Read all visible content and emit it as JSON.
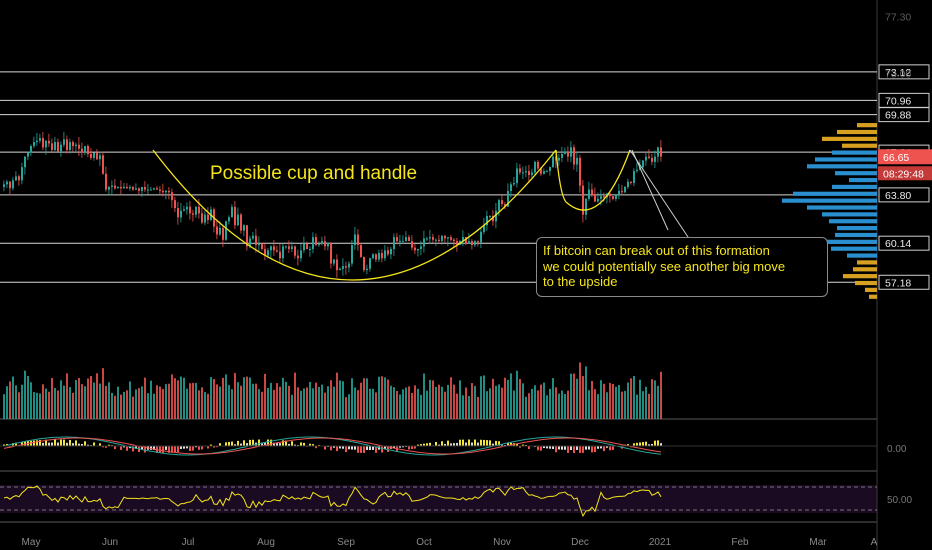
{
  "chart_data": {
    "type": "candlestick",
    "x_ticks": [
      "May",
      "Jun",
      "Jul",
      "Aug",
      "Sep",
      "Oct",
      "Nov",
      "Dec",
      "2021",
      "Feb",
      "Mar",
      "A"
    ],
    "price_ticks": [
      77.3,
      73.0,
      66.5,
      63.8,
      60.14,
      57.18
    ],
    "price_tick_labels": [
      "77.30",
      "73.00",
      "66.50",
      "63.80",
      "60.14",
      "57.18"
    ],
    "horizontal_levels": [
      {
        "value": 73.12,
        "label": "73.12"
      },
      {
        "value": 70.96,
        "label": "70.96"
      },
      {
        "value": 69.88,
        "label": "69.88"
      },
      {
        "value": 67.04,
        "label": "67.04"
      },
      {
        "value": 63.8,
        "label": "63.80"
      },
      {
        "value": 60.14,
        "label": "60.14"
      },
      {
        "value": 57.18,
        "label": "57.18"
      }
    ],
    "current_price": {
      "value": 66.65,
      "label": "66.65"
    },
    "countdown": "08:29:48",
    "close_series": [
      64.6,
      64.8,
      64.3,
      64.9,
      65.2,
      64.9,
      65.9,
      66.7,
      67.0,
      67.5,
      67.8,
      67.9,
      68.1,
      67.4,
      67.9,
      67.7,
      67.2,
      67.8,
      67.1,
      67.6,
      68.0,
      67.2,
      67.8,
      67.5,
      67.6,
      67.3,
      67.0,
      67.5,
      66.9,
      66.6,
      67.0,
      66.5,
      66.8,
      65.4,
      64.2,
      64.4,
      64.5,
      64.3,
      64.4,
      64.3,
      64.4,
      64.3,
      64.4,
      64.2,
      64.3,
      64.1,
      64.4,
      64.2,
      64.2,
      64.2,
      64.3,
      64.2,
      64.1,
      64.0,
      64.1,
      64.0,
      63.4,
      62.8,
      62.1,
      62.6,
      62.7,
      62.9,
      62.4,
      62.3,
      62.9,
      62.4,
      61.7,
      62.3,
      61.9,
      62.7,
      61.4,
      60.8,
      61.3,
      60.4,
      61.8,
      62.1,
      62.9,
      61.5,
      62.3,
      61.1,
      61.5,
      59.9,
      60.5,
      60.7,
      60.0,
      60.1,
      59.7,
      59.2,
      59.6,
      59.9,
      59.6,
      59.5,
      59.0,
      59.9,
      59.9,
      59.7,
      59.9,
      59.2,
      59.0,
      59.6,
      60.1,
      59.7,
      59.7,
      60.6,
      60.0,
      60.1,
      60.3,
      59.9,
      60.2,
      58.6,
      58.9,
      58.1,
      58.2,
      58.4,
      58.3,
      58.6,
      60.0,
      60.8,
      60.0,
      59.1,
      58.1,
      58.2,
      59.0,
      59.3,
      58.9,
      59.4,
      59.0,
      59.6,
      59.3,
      59.7,
      60.6,
      60.3,
      60.3,
      60.3,
      60.6,
      60.3,
      59.8,
      59.6,
      59.7,
      59.9,
      60.5,
      60.5,
      60.6,
      60.4,
      60.4,
      60.3,
      60.7,
      60.5,
      60.6,
      60.4,
      60.3,
      60.0,
      60.3,
      60.6,
      60.1,
      60.3,
      60.0,
      60.3,
      60.2,
      61.0,
      61.5,
      62.2,
      62.2,
      61.8,
      62.6,
      63.4,
      63.1,
      62.9,
      64.1,
      64.6,
      64.7,
      65.8,
      65.5,
      65.5,
      65.6,
      65.3,
      65.5,
      66.3,
      65.8,
      65.4,
      65.6,
      65.6,
      65.9,
      66.7,
      66.4,
      66.6,
      66.9,
      67.1,
      66.7,
      67.4,
      66.1,
      66.6,
      64.5,
      62.3,
      63.5,
      64.2,
      63.8,
      63.3,
      63.5,
      63.7,
      63.6,
      63.9,
      63.7,
      63.5,
      63.8,
      64.1,
      64.0,
      64.4,
      64.8,
      64.7,
      65.6,
      65.7,
      65.9,
      66.4,
      66.7,
      66.6,
      66.3,
      66.7,
      67.4,
      66.7
    ],
    "volume_range": [
      0,
      25
    ],
    "oscillator_zero_label": "0.00",
    "rsi_label": "50.00"
  },
  "annotations": {
    "pattern_label": "Possible cup and handle",
    "note_lines": [
      "If bitcoin can break out of this formation",
      " we could potentially see another big move",
      "to the upside"
    ]
  },
  "colors": {
    "up": "#26a69a",
    "down": "#ef5350",
    "drawing": "#f5e51a",
    "volume_profile": "#d8a020",
    "volume_profile_value_area": "#2a8fce",
    "level_line": "#d8d8d8",
    "current_price_badge": "#ef5350",
    "rsi_band": "#1a0a22"
  }
}
